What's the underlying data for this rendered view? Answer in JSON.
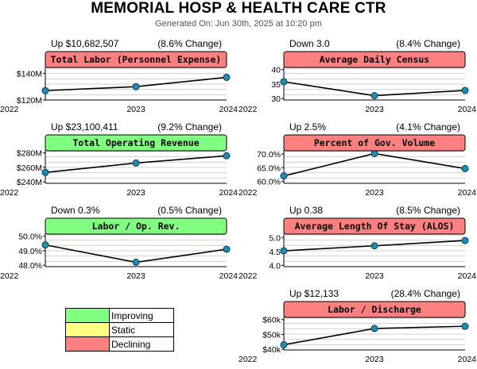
{
  "header": {
    "title": "MEMORIAL HOSP & HEALTH CARE CTR",
    "subtitle": "Generated On: Jun 30th, 2025 at 10:20 pm"
  },
  "colors": {
    "improving": "#80ff80",
    "static": "#ffff80",
    "declining": "#ff8080",
    "line": "#000000",
    "point": "#1f8db0",
    "grid": "#d0d0d0"
  },
  "legend": [
    {
      "label": "Improving",
      "color": "#80ff80"
    },
    {
      "label": "Static",
      "color": "#ffff80"
    },
    {
      "label": "Declining",
      "color": "#ff8080"
    }
  ],
  "chart_data": [
    {
      "type": "line",
      "title": "Total Labor (Personnel Expense)",
      "status": "declining",
      "change_text": "Up $10,682,507",
      "pct_text": "(8.6% Change)",
      "x": [
        "2022",
        "2023",
        "2024"
      ],
      "values": [
        127,
        130,
        137
      ],
      "ylim": [
        120,
        145
      ],
      "yticks": [
        120,
        140
      ],
      "ytick_labels": [
        "$120M",
        "$140M"
      ]
    },
    {
      "type": "line",
      "title": "Average Daily Census",
      "status": "declining",
      "change_text": "Down 3.0",
      "pct_text": "(8.4% Change)",
      "x": [
        "2022",
        "2023",
        "2024"
      ],
      "values": [
        35.8,
        31.0,
        32.8
      ],
      "ylim": [
        29.5,
        41
      ],
      "yticks": [
        30,
        35,
        40
      ],
      "ytick_labels": [
        "30",
        "35",
        "40"
      ]
    },
    {
      "type": "line",
      "title": "Total Operating Revenue",
      "status": "improving",
      "change_text": "Up $23,100,411",
      "pct_text": "(9.2% Change)",
      "x": [
        "2022",
        "2023",
        "2024"
      ],
      "values": [
        253,
        266,
        276
      ],
      "ylim": [
        238,
        284
      ],
      "yticks": [
        240,
        260,
        280
      ],
      "ytick_labels": [
        "$240M",
        "$260M",
        "$280M"
      ]
    },
    {
      "type": "line",
      "title": "Percent of Gov. Volume",
      "status": "declining",
      "change_text": "Up 2.5%",
      "pct_text": "(4.1% Change)",
      "x": [
        "2022",
        "2023",
        "2024"
      ],
      "values": [
        62.0,
        70.2,
        64.7
      ],
      "ylim": [
        59.3,
        71.5
      ],
      "yticks": [
        60,
        65,
        70
      ],
      "ytick_labels": [
        "60.0%",
        "65.0%",
        "70.0%"
      ]
    },
    {
      "type": "line",
      "title": "Labor / Op. Rev.",
      "status": "improving",
      "change_text": "Down 0.3%",
      "pct_text": "(0.5% Change)",
      "x": [
        "2022",
        "2023",
        "2024"
      ],
      "values": [
        49.4,
        48.2,
        49.1
      ],
      "ylim": [
        47.9,
        50.2
      ],
      "yticks": [
        48,
        49,
        50
      ],
      "ytick_labels": [
        "48.0%",
        "49.0%",
        "50.0%"
      ]
    },
    {
      "type": "line",
      "title": "Average Length Of Stay (ALOS)",
      "status": "declining",
      "change_text": "Up 0.38",
      "pct_text": "(8.5% Change)",
      "x": [
        "2022",
        "2023",
        "2024"
      ],
      "values": [
        4.52,
        4.7,
        4.89
      ],
      "ylim": [
        3.95,
        5.15
      ],
      "yticks": [
        4.0,
        4.5,
        5.0
      ],
      "ytick_labels": [
        "4.0",
        "4.5",
        "5.0"
      ]
    },
    {
      "type": "line",
      "title": "Labor / Discharge",
      "status": "declining",
      "change_text": "Up $12,133",
      "pct_text": "(28.4% Change)",
      "x": [
        "2022",
        "2023",
        "2024"
      ],
      "values": [
        43000,
        54000,
        55500
      ],
      "ylim": [
        39500,
        62000
      ],
      "yticks": [
        40000,
        50000,
        60000
      ],
      "ytick_labels": [
        "$40k",
        "$50k",
        "$60k"
      ]
    }
  ]
}
